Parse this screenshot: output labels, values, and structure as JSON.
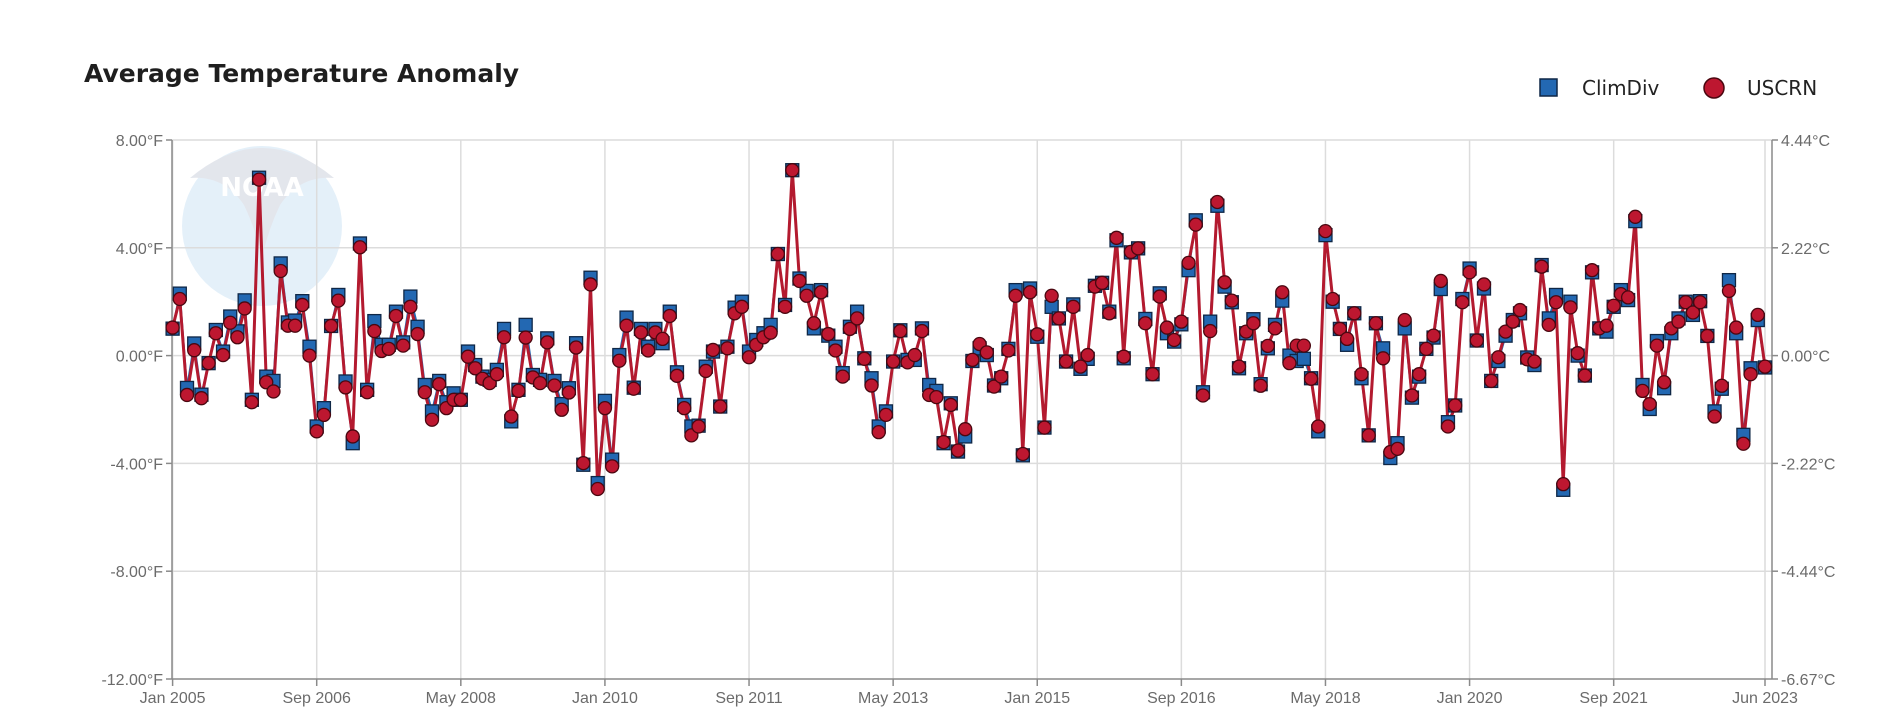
{
  "watermark": {
    "logo_text": "NOAA"
  },
  "colors": {
    "climdiv": "#2368b2",
    "climdiv_stroke": "#0f2746",
    "uscrn": "#bd1730",
    "uscrn_stroke": "#4a0710",
    "line": "#b31a2f"
  },
  "chart_data": {
    "type": "line",
    "title": "Average Temperature Anomaly",
    "xlabel": "",
    "ylabel": "",
    "start_month": "Jan 2005",
    "end_month": "Jun 2023",
    "frequency": "monthly",
    "ylim": [
      -12,
      8
    ],
    "y_ticks_left": [
      "8.00°F",
      "4.00°F",
      "0.00°F",
      "-4.00°F",
      "-8.00°F",
      "-12.00°F"
    ],
    "y_tick_values": [
      8,
      4,
      0,
      -4,
      -8,
      -12
    ],
    "y_ticks_right": [
      "4.44°C",
      "2.22°C",
      "0.00°C",
      "-2.22°C",
      "-4.44°C",
      "-6.67°C"
    ],
    "x_ticks": [
      {
        "label": "Jan 2005",
        "index": 0
      },
      {
        "label": "Sep 2006",
        "index": 20
      },
      {
        "label": "May 2008",
        "index": 40
      },
      {
        "label": "Jan 2010",
        "index": 60
      },
      {
        "label": "Sep 2011",
        "index": 80
      },
      {
        "label": "May 2013",
        "index": 100
      },
      {
        "label": "Jan 2015",
        "index": 120
      },
      {
        "label": "Sep 2016",
        "index": 140
      },
      {
        "label": "May 2018",
        "index": 160
      },
      {
        "label": "Jan 2020",
        "index": 180
      },
      {
        "label": "Sep 2021",
        "index": 200
      },
      {
        "label": "Jun 2023",
        "index": 221
      }
    ],
    "grid": true,
    "legend_position": "top-right",
    "series": [
      {
        "name": "ClimDiv",
        "marker": "square",
        "values": [
          1.0,
          2.3,
          -1.2,
          0.45,
          -1.45,
          -0.28,
          0.95,
          0.15,
          1.45,
          0.9,
          2.05,
          -1.64,
          6.6,
          -0.78,
          -0.94,
          3.42,
          1.23,
          1.3,
          2.02,
          0.33,
          -2.63,
          -1.95,
          1.1,
          2.25,
          -0.96,
          -3.25,
          4.16,
          -1.27,
          1.28,
          0.4,
          0.4,
          1.63,
          0.49,
          2.19,
          1.07,
          -1.09,
          -2.07,
          -0.94,
          -1.73,
          -1.4,
          -1.64,
          0.15,
          -0.35,
          -0.78,
          -0.9,
          -0.53,
          0.99,
          -2.44,
          -1.27,
          1.14,
          -0.72,
          -0.9,
          0.64,
          -0.94,
          -1.8,
          -1.21,
          0.46,
          -4.05,
          2.89,
          -4.73,
          -1.68,
          -3.86,
          0.02,
          1.41,
          -1.19,
          0.99,
          0.33,
          0.99,
          0.46,
          1.63,
          -0.62,
          -1.83,
          -2.63,
          -2.6,
          -0.41,
          0.15,
          -1.89,
          0.33,
          1.78,
          2.0,
          0.15,
          0.58,
          0.83,
          1.14,
          3.77,
          1.88,
          6.88,
          2.86,
          2.4,
          1.01,
          2.43,
          0.74,
          0.33,
          -0.65,
          1.07,
          1.63,
          -0.1,
          -0.84,
          -2.63,
          -2.07,
          -0.22,
          0.94,
          -0.16,
          -0.16,
          1.01,
          -1.09,
          -1.31,
          -3.25,
          -1.77,
          -3.56,
          -3.0,
          -0.2,
          0.27,
          0.02,
          -1.11,
          -0.84,
          0.25,
          2.43,
          -3.7,
          2.49,
          0.7,
          -2.67,
          1.81,
          1.38,
          -0.22,
          1.9,
          -0.49,
          -0.12,
          2.59,
          2.7,
          1.63,
          4.28,
          -0.1,
          3.83,
          3.98,
          1.36,
          -0.69,
          2.31,
          0.83,
          0.52,
          1.16,
          3.17,
          5.02,
          -1.36,
          1.26,
          5.56,
          2.56,
          1.98,
          -0.47,
          0.83,
          1.35,
          -1.06,
          0.27,
          1.14,
          2.04,
          0,
          -0.2,
          -0.12,
          -0.84,
          -2.81,
          4.47,
          2.0,
          0.99,
          0.4,
          1.57,
          -0.84,
          -2.96,
          1.2,
          0.27,
          -3.8,
          -3.25,
          1.01,
          -1.56,
          -0.78,
          0.25,
          0.67,
          2.47,
          -2.47,
          -1.85,
          2.1,
          3.23,
          0.56,
          2.49,
          -0.94,
          -0.2,
          0.74,
          1.32,
          1.57,
          -0.07,
          -0.35,
          3.36,
          1.38,
          2.25,
          -4.98,
          2.0,
          0,
          -0.74,
          3.09,
          1.01,
          0.89,
          1.81,
          2.43,
          2.06,
          4.99,
          -1.09,
          -1.98,
          0.54,
          -1.21,
          0.83,
          1.38,
          2.0,
          1.51,
          2.02,
          0.73,
          -2.07,
          -1.23,
          2.8,
          0.83,
          -2.94,
          -0.47,
          1.32,
          -0.44
        ]
      },
      {
        "name": "USCRN",
        "marker": "circle",
        "values": [
          1.04,
          2.1,
          -1.46,
          0.2,
          -1.58,
          -0.28,
          0.83,
          0.02,
          1.22,
          0.68,
          1.75,
          -1.73,
          6.53,
          -0.99,
          -1.33,
          3.14,
          1.11,
          1.11,
          1.88,
          0,
          -2.81,
          -2.2,
          1.1,
          2.04,
          -1.18,
          -3.0,
          4.02,
          -1.36,
          0.91,
          0.17,
          0.25,
          1.47,
          0.37,
          1.81,
          0.8,
          -1.36,
          -2.38,
          -1.06,
          -1.95,
          -1.64,
          -1.64,
          -0.04,
          -0.47,
          -0.86,
          -1.02,
          -0.69,
          0.68,
          -2.26,
          -1.31,
          0.67,
          -0.81,
          -1.02,
          0.49,
          -1.11,
          -2.01,
          -1.37,
          0.3,
          -3.99,
          2.64,
          -4.95,
          -1.95,
          -4.11,
          -0.19,
          1.11,
          -1.23,
          0.86,
          0.19,
          0.86,
          0.62,
          1.47,
          -0.75,
          -1.95,
          -2.96,
          -2.63,
          -0.57,
          0.21,
          -1.89,
          0.27,
          1.57,
          1.81,
          -0.06,
          0.4,
          0.68,
          0.85,
          3.77,
          1.81,
          6.88,
          2.77,
          2.22,
          1.2,
          2.35,
          0.8,
          0.19,
          -0.78,
          0.99,
          1.38,
          -0.12,
          -1.11,
          -2.84,
          -2.2,
          -0.22,
          0.91,
          -0.25,
          0.02,
          0.91,
          -1.46,
          -1.54,
          -3.21,
          -1.83,
          -3.52,
          -2.73,
          -0.16,
          0.43,
          0.12,
          -1.15,
          -0.78,
          0.19,
          2.22,
          -3.65,
          2.35,
          0.79,
          -2.67,
          2.22,
          1.38,
          -0.22,
          1.81,
          -0.41,
          0.02,
          2.56,
          2.7,
          1.57,
          4.37,
          -0.04,
          3.85,
          3.98,
          1.2,
          -0.69,
          2.19,
          1.04,
          0.58,
          1.26,
          3.44,
          4.86,
          -1.48,
          0.91,
          5.7,
          2.72,
          2.04,
          -0.41,
          0.89,
          1.2,
          -1.12,
          0.36,
          1.01,
          2.35,
          -0.28,
          0.37,
          0.37,
          -0.86,
          -2.63,
          4.62,
          2.1,
          0.99,
          0.62,
          1.57,
          -0.69,
          -2.96,
          1.2,
          -0.1,
          -3.58,
          -3.46,
          1.32,
          -1.48,
          -0.69,
          0.25,
          0.74,
          2.77,
          -2.63,
          -1.85,
          1.98,
          3.09,
          0.56,
          2.64,
          -0.94,
          -0.06,
          0.89,
          1.26,
          1.69,
          -0.14,
          -0.22,
          3.3,
          1.14,
          1.98,
          -4.77,
          1.79,
          0.09,
          -0.74,
          3.17,
          1.01,
          1.11,
          1.85,
          2.28,
          2.16,
          5.15,
          -1.31,
          -1.8,
          0.37,
          -0.99,
          1.01,
          1.26,
          1.98,
          1.6,
          1.98,
          0.73,
          -2.26,
          -1.12,
          2.4,
          1.04,
          -3.27,
          -0.69,
          1.51,
          -0.41
        ]
      }
    ]
  }
}
